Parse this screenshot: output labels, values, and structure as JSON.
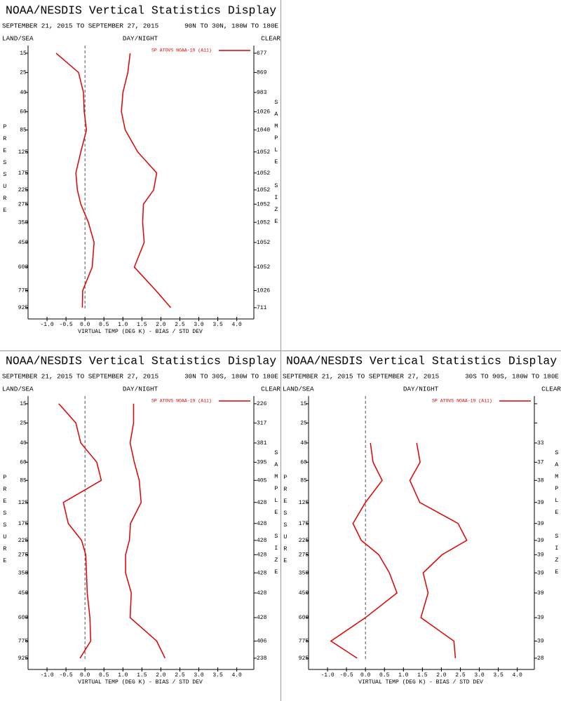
{
  "chart_data": [
    {
      "type": "line",
      "title": "NOAA/NESDIS Vertical Statistics Display",
      "date_range": "SEPTEMBER 21, 2015 TO SEPTEMBER 27, 2015",
      "region": "90N TO 30N, 180W TO 180E",
      "land_sea": "LAND/SEA",
      "day_night": "DAY/NIGHT",
      "clear": "CLEAR",
      "y_label": "PRESSURE",
      "y2_label": "SAMPLE SIZE",
      "x_label": "VIRTUAL TEMP (DEG K) - BIAS / STD DEV",
      "xlim": [
        -1.5,
        4.45
      ],
      "xticks": [
        {
          "value": -1,
          "label": "-1.0"
        },
        {
          "value": -0.5,
          "label": "-0.5"
        },
        {
          "value": 0,
          "label": "0.0"
        },
        {
          "value": 0.5,
          "label": "0.5"
        },
        {
          "value": 1,
          "label": "1.0"
        },
        {
          "value": 1.5,
          "label": "1.5"
        },
        {
          "value": 2,
          "label": "2.0"
        },
        {
          "value": 2.5,
          "label": "2.5"
        },
        {
          "value": 3,
          "label": "3.0"
        },
        {
          "value": 3.5,
          "label": "3.5"
        },
        {
          "value": 4,
          "label": "4.0"
        }
      ],
      "ylim": [
        12,
        1035
      ],
      "yticks": [
        15,
        25,
        40,
        60,
        85,
        125,
        175,
        225,
        275,
        350,
        450,
        600,
        775,
        925
      ],
      "y": [
        15,
        25,
        40,
        60,
        85,
        125,
        175,
        225,
        275,
        350,
        450,
        600,
        775,
        925
      ],
      "series": [
        {
          "name": "SP ATOVS NOAA-19 (A11)",
          "color": "#e00000",
          "values": [
            -0.76,
            -0.17,
            -0.04,
            -0.02,
            0.04,
            -0.11,
            -0.24,
            -0.2,
            -0.11,
            0.09,
            0.24,
            0.19,
            -0.06,
            -0.07
          ],
          "std_dev": [
            1.19,
            1.13,
            1.0,
            0.96,
            1.06,
            1.39,
            1.89,
            1.81,
            1.54,
            1.52,
            1.56,
            1.3,
            1.87,
            2.26
          ]
        }
      ],
      "sample_size": [
        677,
        869,
        983,
        1026,
        1040,
        1052,
        1052,
        1052,
        1052,
        1052,
        1052,
        1052,
        1026,
        711
      ]
    },
    {
      "type": "line",
      "title": "NOAA/NESDIS Vertical Statistics Display",
      "date_range": "SEPTEMBER 21, 2015 TO SEPTEMBER 27, 2015",
      "region": "30N TO 30S, 180W TO 180E",
      "land_sea": "LAND/SEA",
      "day_night": "DAY/NIGHT",
      "clear": "CLEAR",
      "y_label": "PRESSURE",
      "y2_label": "SAMPLE SIZE",
      "x_label": "VIRTUAL TEMP (DEG K) - BIAS / STD DEV",
      "xlim": [
        -1.5,
        4.45
      ],
      "xticks": [
        {
          "value": -1,
          "label": "-1.0"
        },
        {
          "value": -0.5,
          "label": "-0.5"
        },
        {
          "value": 0,
          "label": "0.0"
        },
        {
          "value": 0.5,
          "label": "0.5"
        },
        {
          "value": 1,
          "label": "1.0"
        },
        {
          "value": 1.5,
          "label": "1.5"
        },
        {
          "value": 2,
          "label": "2.0"
        },
        {
          "value": 2.5,
          "label": "2.5"
        },
        {
          "value": 3,
          "label": "3.0"
        },
        {
          "value": 3.5,
          "label": "3.5"
        },
        {
          "value": 4,
          "label": "4.0"
        }
      ],
      "ylim": [
        12,
        1035
      ],
      "yticks": [
        15,
        25,
        40,
        60,
        85,
        125,
        175,
        225,
        275,
        350,
        450,
        600,
        775,
        925
      ],
      "y": [
        15,
        25,
        40,
        60,
        85,
        125,
        175,
        225,
        275,
        350,
        450,
        600,
        775,
        925
      ],
      "series": [
        {
          "name": "SP ATOVS NOAA-19 (A11)",
          "color": "#e00000",
          "values": [
            -0.69,
            -0.24,
            -0.11,
            0.31,
            0.43,
            -0.57,
            -0.44,
            -0.09,
            0.02,
            0.04,
            0.06,
            0.13,
            0.15,
            -0.13
          ],
          "std_dev": [
            1.28,
            1.28,
            1.19,
            1.3,
            1.43,
            1.48,
            1.2,
            1.17,
            1.07,
            1.07,
            1.22,
            1.19,
            1.89,
            2.11
          ]
        }
      ],
      "sample_size": [
        226,
        317,
        381,
        395,
        405,
        428,
        428,
        428,
        428,
        428,
        428,
        428,
        406,
        238
      ]
    },
    {
      "type": "line",
      "title": "NOAA/NESDIS Vertical Statistics Display",
      "date_range": "SEPTEMBER 21, 2015 TO SEPTEMBER 27, 2015",
      "region": "30S TO 90S, 180W TO 180E",
      "land_sea": "LAND/SEA",
      "day_night": "DAY/NIGHT",
      "clear": "CLEAR",
      "y_label": "PRESSURE",
      "y2_label": "SAMPLE SIZE",
      "x_label": "VIRTUAL TEMP (DEG K) - BIAS / STD DEV",
      "xlim": [
        -1.5,
        4.45
      ],
      "xticks": [
        {
          "value": -1,
          "label": "-1.0"
        },
        {
          "value": -0.5,
          "label": "-0.5"
        },
        {
          "value": 0,
          "label": "0.0"
        },
        {
          "value": 0.5,
          "label": "0.5"
        },
        {
          "value": 1,
          "label": "1.0"
        },
        {
          "value": 1.5,
          "label": "1.5"
        },
        {
          "value": 2,
          "label": "2.0"
        },
        {
          "value": 2.5,
          "label": "2.5"
        },
        {
          "value": 3,
          "label": "3.0"
        },
        {
          "value": 3.5,
          "label": "3.5"
        },
        {
          "value": 4,
          "label": "4.0"
        }
      ],
      "ylim": [
        12,
        1035
      ],
      "yticks": [
        15,
        25,
        40,
        60,
        85,
        125,
        175,
        225,
        275,
        350,
        450,
        600,
        775,
        925
      ],
      "y": [
        15,
        25,
        40,
        60,
        85,
        125,
        175,
        225,
        275,
        350,
        450,
        600,
        775,
        925
      ],
      "series": [
        {
          "name": "SP ATOVS NOAA-19 (A11)",
          "color": "#e00000",
          "values": [
            null,
            null,
            0.13,
            0.2,
            0.44,
            0.0,
            -0.33,
            -0.11,
            0.35,
            0.63,
            0.83,
            0.0,
            -0.91,
            -0.22
          ],
          "std_dev": [
            null,
            null,
            1.35,
            1.44,
            1.17,
            1.43,
            2.44,
            2.67,
            2.02,
            1.52,
            1.65,
            1.46,
            2.33,
            2.37
          ]
        }
      ],
      "sample_size": [
        null,
        null,
        33,
        37,
        38,
        39,
        39,
        39,
        39,
        39,
        39,
        39,
        39,
        28
      ]
    }
  ]
}
